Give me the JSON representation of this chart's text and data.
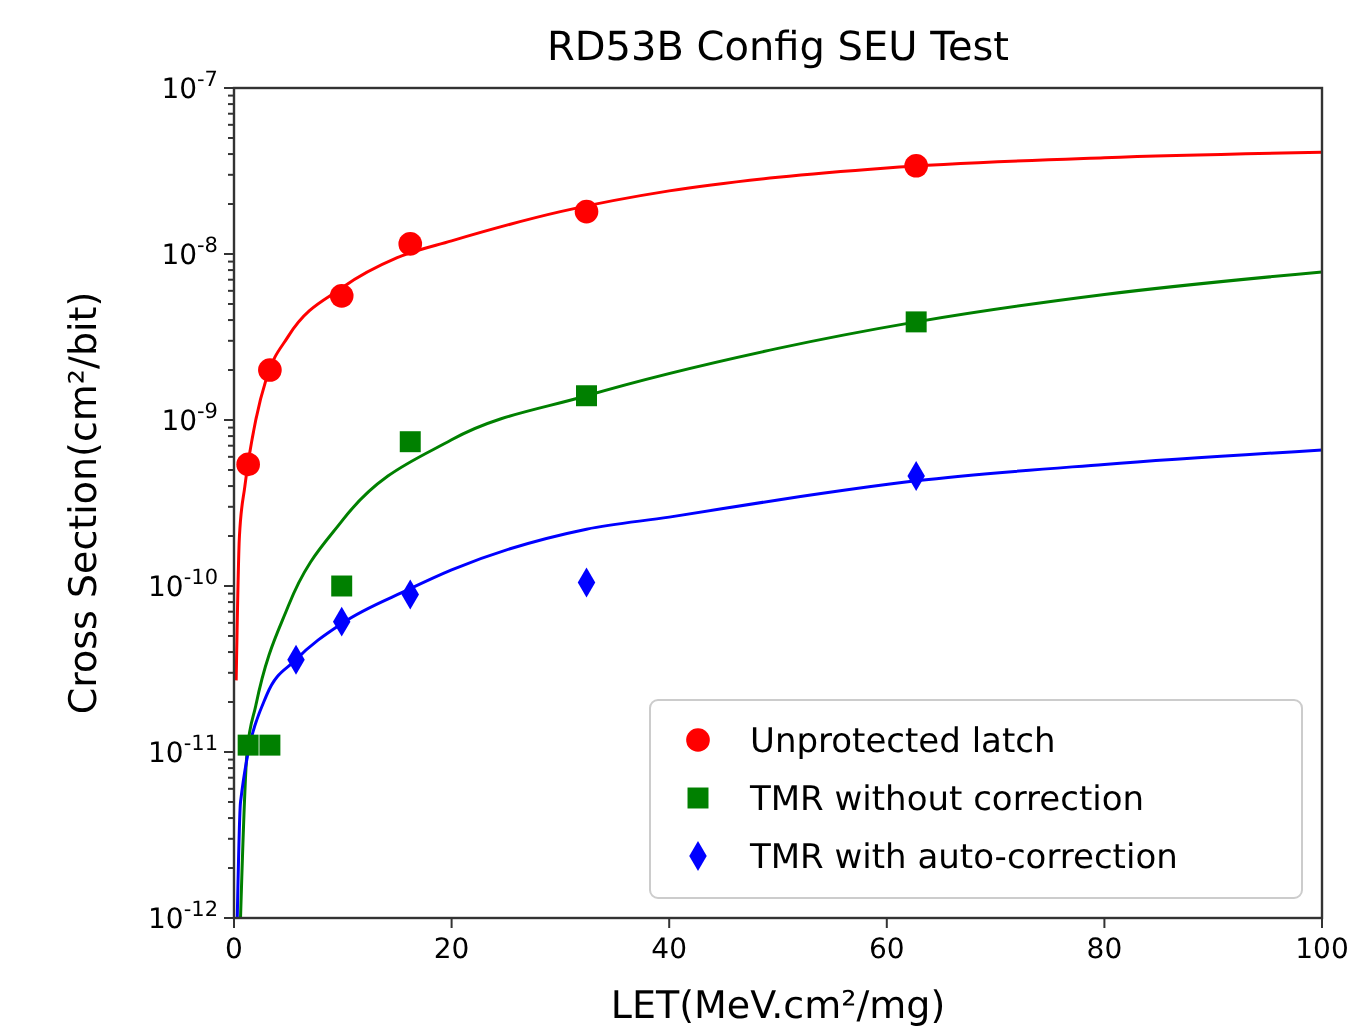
{
  "chart_data": {
    "type": "scatter",
    "title": "RD53B Config SEU Test",
    "xlabel": "LET(MeV.cm²/mg)",
    "ylabel": "Cross Section(cm²/bit)",
    "log": "y",
    "xlim": [
      0,
      100
    ],
    "xticks": [
      0,
      20,
      40,
      60,
      80,
      100
    ],
    "ylim": [
      1e-12,
      1e-07
    ],
    "yticks": [
      {
        "value": 1e-12,
        "label": "10$^{-12}$"
      },
      {
        "value": 1e-11,
        "label": "10$^{-11}$"
      },
      {
        "value": 1e-10,
        "label": "10$^{-10}$"
      },
      {
        "value": 1e-09,
        "label": "10$^{-9}$"
      },
      {
        "value": 1e-08,
        "label": "10$^{-8}$"
      },
      {
        "value": 1e-07,
        "label": "10$^{-7}$"
      },
      {
        "value": 2e-12,
        "label": null
      },
      {
        "value": 3e-12,
        "label": null
      },
      {
        "value": 4e-12,
        "label": null
      },
      {
        "value": 5e-12,
        "label": null
      },
      {
        "value": 6e-12,
        "label": null
      },
      {
        "value": 7e-12,
        "label": null
      },
      {
        "value": 8e-12,
        "label": null
      },
      {
        "value": 9e-12,
        "label": null
      },
      {
        "value": 2e-11,
        "label": null
      },
      {
        "value": 3e-11,
        "label": null
      },
      {
        "value": 4e-11,
        "label": null
      },
      {
        "value": 5e-11,
        "label": null
      },
      {
        "value": 6e-11,
        "label": null
      },
      {
        "value": 7e-11,
        "label": null
      },
      {
        "value": 8e-11,
        "label": null
      },
      {
        "value": 9e-11,
        "label": null
      },
      {
        "value": 2e-10,
        "label": null
      },
      {
        "value": 3e-10,
        "label": null
      },
      {
        "value": 4e-10,
        "label": null
      },
      {
        "value": 5e-10,
        "label": null
      },
      {
        "value": 6e-10,
        "label": null
      },
      {
        "value": 7e-10,
        "label": null
      },
      {
        "value": 8e-10,
        "label": null
      },
      {
        "value": 9e-10,
        "label": null
      },
      {
        "value": 2e-09,
        "label": null
      },
      {
        "value": 3e-09,
        "label": null
      },
      {
        "value": 4e-09,
        "label": null
      },
      {
        "value": 5e-09,
        "label": null
      },
      {
        "value": 6e-09,
        "label": null
      },
      {
        "value": 7e-09,
        "label": null
      },
      {
        "value": 8e-09,
        "label": null
      },
      {
        "value": 9e-09,
        "label": null
      },
      {
        "value": 2e-08,
        "label": null
      },
      {
        "value": 3e-08,
        "label": null
      },
      {
        "value": 4e-08,
        "label": null
      },
      {
        "value": 5e-08,
        "label": null
      },
      {
        "value": 6e-08,
        "label": null
      },
      {
        "value": 7e-08,
        "label": null
      },
      {
        "value": 8e-08,
        "label": null
      },
      {
        "value": 9e-08,
        "label": null
      }
    ],
    "grid": false,
    "legend": "bottom right",
    "series": [
      {
        "type": "line",
        "color": "#ff0000",
        "marker": "none",
        "x": [
          0.2,
          0.5,
          1,
          2,
          3,
          5,
          10,
          15,
          20,
          30,
          40,
          50,
          60,
          80,
          100
        ],
        "values": [
          2.7e-11,
          2e-10,
          4e-10,
          1e-09,
          1.8e-09,
          3.2e-09,
          6.3e-09,
          9.5e-09,
          1.2e-08,
          1.8e-08,
          2.4e-08,
          2.9e-08,
          3.3e-08,
          3.8e-08,
          4.1e-08
        ]
      },
      {
        "type": "line",
        "color": "#008000",
        "marker": "none",
        "x": [
          0.6,
          1.2,
          2,
          5,
          10,
          20,
          32.4,
          50,
          62.7,
          80,
          100
        ],
        "values": [
          1e-12,
          1e-11,
          1.9e-11,
          7.6e-11,
          2.5e-10,
          7.6e-10,
          1.4e-09,
          2.7e-09,
          3.9e-09,
          5.7e-09,
          7.8e-09
        ]
      },
      {
        "type": "line",
        "color": "#0000ff",
        "marker": "none",
        "x": [
          0.3,
          0.6,
          3,
          5.7,
          10,
          16,
          20,
          32.4,
          40,
          50,
          62.7,
          80,
          100
        ],
        "values": [
          1e-12,
          5e-12,
          2.2e-11,
          3.6e-11,
          6e-11,
          9.5e-11,
          1.25e-10,
          2.2e-10,
          2.6e-10,
          3.3e-10,
          4.3e-10,
          5.4e-10,
          6.6e-10
        ]
      },
      {
        "name": "Unprotected latch",
        "color": "#ff0000",
        "marker": "circle",
        "x": [
          1.3,
          3.3,
          9.9,
          16.2,
          32.4,
          62.7
        ],
        "values": [
          5.4e-10,
          2e-09,
          5.6e-09,
          1.15e-08,
          1.8e-08,
          3.4e-08
        ]
      },
      {
        "name": "TMR without correction",
        "color": "#008000",
        "marker": "square",
        "x": [
          1.3,
          3.3,
          9.9,
          16.2,
          32.4,
          62.7
        ],
        "values": [
          1.1e-11,
          1.1e-11,
          1e-10,
          7.4e-10,
          1.4e-09,
          3.9e-09
        ]
      },
      {
        "name": "TMR with auto-correction",
        "color": "#0000ff",
        "marker": "diamond",
        "x": [
          5.7,
          9.9,
          16.2,
          32.4,
          62.7
        ],
        "values": [
          3.6e-11,
          6.1e-11,
          8.9e-11,
          1.05e-10,
          4.6e-10
        ]
      }
    ]
  }
}
